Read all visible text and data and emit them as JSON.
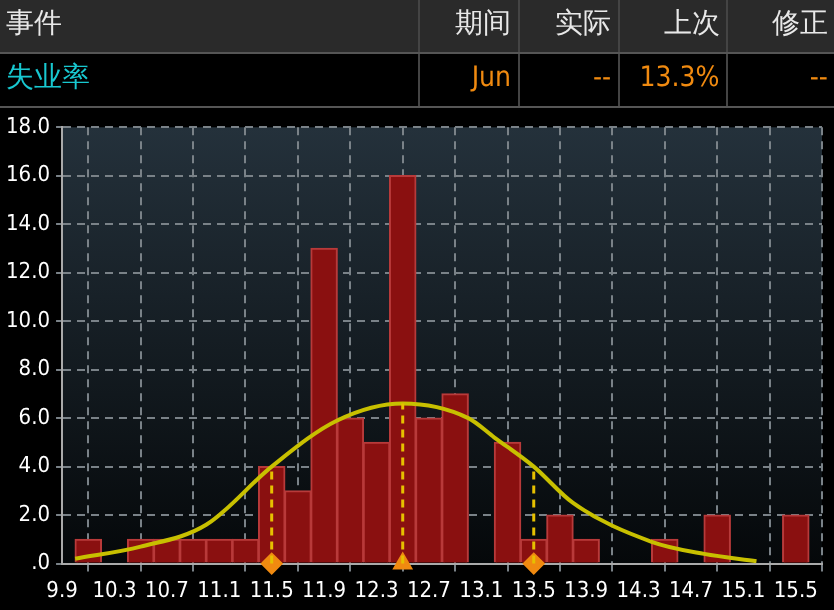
{
  "chart_data": {
    "type": "histogram",
    "annotations": [
      "事件",
      "期间",
      "实际",
      "上次",
      "修正",
      "失业率",
      "Jun",
      "--",
      "13.3%",
      "--"
    ],
    "series": [
      {
        "color": "#8a1010",
        "bins": [
          10.0,
          10.2,
          10.4,
          10.6,
          10.8,
          11.0,
          11.2,
          11.4,
          11.6,
          11.8,
          12.0,
          12.2,
          12.4,
          12.6,
          12.8,
          13.0,
          13.2,
          13.4,
          13.6,
          13.8,
          14.0,
          14.2,
          14.4,
          14.6,
          14.8,
          15.0,
          15.2,
          15.4,
          15.6
        ],
        "values": [
          1,
          0,
          1,
          1,
          1,
          1,
          1,
          4,
          3,
          13,
          6,
          5,
          16,
          6,
          7,
          0,
          5,
          1,
          2,
          1,
          0,
          0,
          1,
          0,
          2,
          0,
          0,
          2
        ]
      },
      {
        "type": "line",
        "color": "#c8c000",
        "marker": "none",
        "x": [
          10.0,
          10.5,
          11.0,
          11.5,
          12.0,
          12.5,
          13.0,
          13.2,
          13.5,
          13.8,
          14.4,
          14.8,
          15.2
        ],
        "values": [
          0.2,
          0.7,
          1.6,
          4.0,
          5.9,
          6.6,
          6.0,
          5.2,
          4.0,
          2.5,
          0.9,
          0.4,
          0.1
        ]
      },
      {
        "type": "scatter",
        "color": "#f08a10",
        "marker": "diamond",
        "x": [
          11.5,
          13.5
        ],
        "values": [
          0,
          0
        ]
      },
      {
        "type": "scatter",
        "color": "#f08a10",
        "marker": "triangle",
        "x": [
          12.5
        ],
        "values": [
          0
        ]
      }
    ],
    "ref_lines": [
      {
        "axis": "x",
        "value": 11.5,
        "color": "#e6c000",
        "line_style": "dashed"
      },
      {
        "axis": "x",
        "value": 12.5,
        "color": "#e6c000",
        "line_style": "dashed"
      },
      {
        "axis": "x",
        "value": 13.5,
        "color": "#e6c000",
        "line_style": "dashed"
      }
    ],
    "xlim": [
      9.9,
      15.7
    ],
    "xticks": [
      9.9,
      10.3,
      10.7,
      11.1,
      11.5,
      11.9,
      12.3,
      12.7,
      13.1,
      13.5,
      13.9,
      14.3,
      14.7,
      15.1,
      15.5
    ],
    "ylim": [
      0,
      18
    ],
    "yticks": [
      {
        "value": 0,
        "label": ".0"
      },
      {
        "value": 2,
        "label": "2.0"
      },
      {
        "value": 4,
        "label": "4.0"
      },
      {
        "value": 6,
        "label": "6.0"
      },
      {
        "value": 8,
        "label": "8.0"
      },
      {
        "value": 10,
        "label": "10.0"
      },
      {
        "value": 12,
        "label": "12.0"
      },
      {
        "value": 14,
        "label": "14.0"
      },
      {
        "value": 16,
        "label": "16.0"
      },
      {
        "value": 18,
        "label": "18.0"
      }
    ],
    "grid": true,
    "legend": false
  }
}
